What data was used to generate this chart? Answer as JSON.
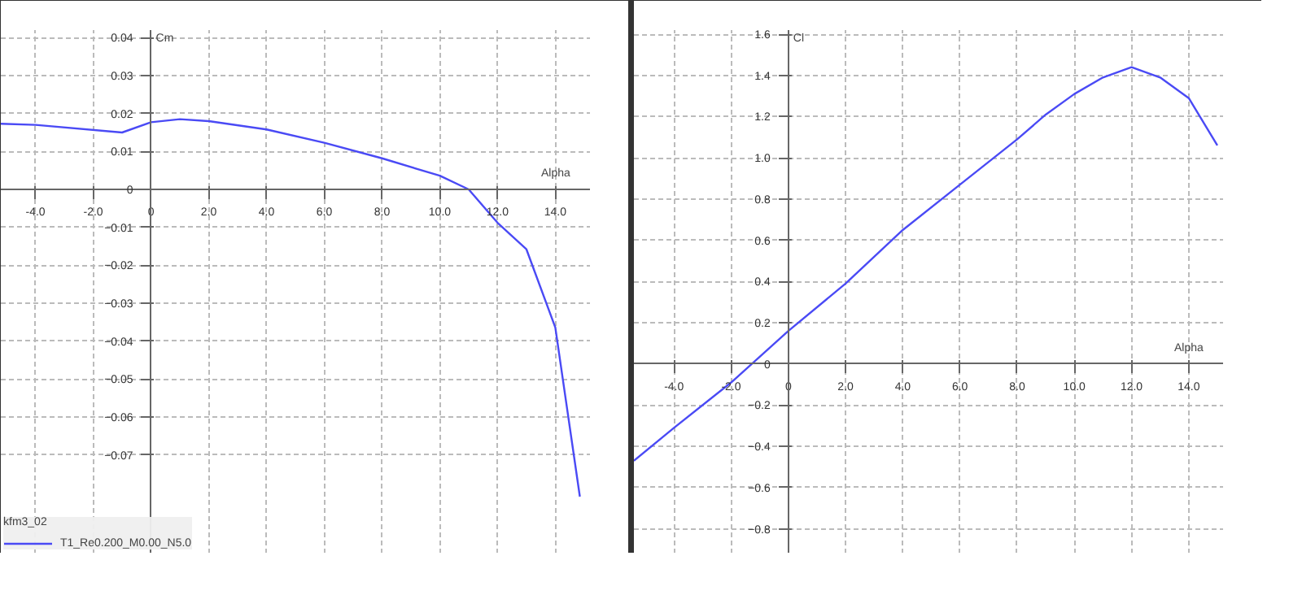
{
  "chart_data": [
    {
      "type": "line",
      "xlabel": "Alpha",
      "ylabel": "Cm",
      "legend_title": "kfm3_02",
      "legend": "bottom left",
      "grid": true,
      "xlim": [
        -5.2,
        15.2
      ],
      "ylim": [
        -0.096,
        0.042
      ],
      "xticks": [
        {
          "value": -4,
          "label": "-4.0"
        },
        {
          "value": -2,
          "label": "-2.0"
        },
        0,
        {
          "value": 2,
          "label": "2.0"
        },
        {
          "value": 4,
          "label": "4.0"
        },
        {
          "value": 6,
          "label": "6.0"
        },
        {
          "value": 8,
          "label": "8.0"
        },
        {
          "value": 10,
          "label": "10.0"
        },
        {
          "value": 12,
          "label": "12.0"
        },
        {
          "value": 14,
          "label": "14.0"
        }
      ],
      "yticks": [
        0.04,
        0.03,
        0.02,
        0.01,
        0,
        -0.01,
        -0.02,
        -0.03,
        -0.04,
        -0.05,
        -0.06,
        -0.07
      ],
      "series": [
        {
          "name": "T1_Re0.200_M0.00_N5.0",
          "color": "#4a4af5",
          "x": [
            -5.2,
            -4,
            -1,
            0,
            1,
            2,
            4,
            6,
            8,
            10,
            11,
            12,
            13,
            14,
            14.85
          ],
          "values": [
            0.0173,
            0.017,
            0.015,
            0.0177,
            0.0185,
            0.018,
            0.0158,
            0.0123,
            0.0082,
            0.0036,
            0.0,
            -0.0088,
            -0.0158,
            -0.0364,
            -0.081
          ]
        }
      ]
    },
    {
      "type": "line",
      "xlabel": "Alpha",
      "ylabel": "Cl",
      "grid": true,
      "xlim": [
        -5.4,
        15.2
      ],
      "ylim": [
        -0.92,
        1.62
      ],
      "xticks": [
        {
          "value": -4,
          "label": "-4.0"
        },
        {
          "value": -2,
          "label": "-2.0"
        },
        0,
        {
          "value": 2,
          "label": "2.0"
        },
        {
          "value": 4,
          "label": "4.0"
        },
        {
          "value": 6,
          "label": "6.0"
        },
        {
          "value": 8,
          "label": "8.0"
        },
        {
          "value": 10,
          "label": "10.0"
        },
        {
          "value": 12,
          "label": "12.0"
        },
        {
          "value": 14,
          "label": "14.0"
        }
      ],
      "yticks": [
        1.6,
        1.4,
        1.2,
        {
          "value": 1,
          "label": "1.0"
        },
        0.8,
        0.6,
        0.4,
        0.2,
        0,
        -0.2,
        -0.4,
        -0.6,
        -0.8
      ],
      "series": [
        {
          "color": "#4a4af5",
          "x": [
            -5.4,
            -4,
            -2,
            0,
            2,
            4,
            6,
            8,
            9,
            10,
            11,
            12,
            13,
            14,
            15
          ],
          "values": [
            -0.47,
            -0.31,
            -0.09,
            0.16,
            0.39,
            0.65,
            0.87,
            1.09,
            1.21,
            1.31,
            1.39,
            1.44,
            1.39,
            1.29,
            1.06
          ]
        }
      ]
    }
  ]
}
